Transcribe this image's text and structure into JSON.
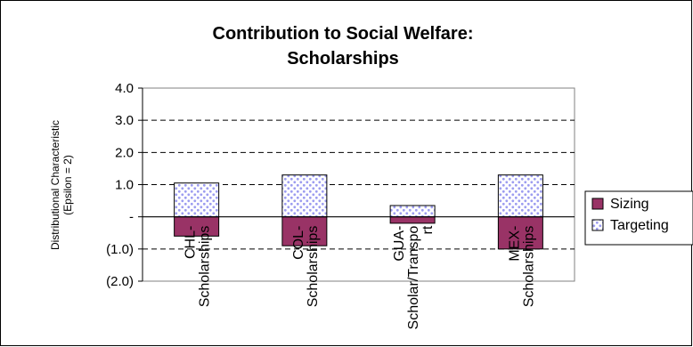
{
  "chart_data": {
    "type": "bar",
    "stacked": true,
    "title": [
      "Contribution to Social Welfare:",
      "Scholarships"
    ],
    "ylabel": [
      "Distributional Characteristic",
      "(Epsilon = 2)"
    ],
    "xlabel": "",
    "categories": [
      [
        "CHL-",
        "Scholarships"
      ],
      [
        "COL-",
        "Scholarships"
      ],
      [
        "GUA-",
        "Scholar/Transpo",
        "rt"
      ],
      [
        "MEX-",
        "Scholarships"
      ]
    ],
    "series": [
      {
        "name": "Sizing",
        "color": "#993366",
        "pattern": "solid",
        "values": [
          -0.6,
          -0.9,
          -0.2,
          -1.0
        ]
      },
      {
        "name": "Targeting",
        "color": "#9999ff",
        "pattern": "dots",
        "values": [
          1.05,
          1.3,
          0.35,
          1.3
        ]
      }
    ],
    "ylim": [
      -2.0,
      4.0
    ],
    "yticks": [
      4.0,
      3.0,
      2.0,
      1.0,
      0.0,
      -1.0,
      -2.0
    ],
    "ytick_labels": [
      "4.0",
      "3.0",
      "2.0",
      "1.0",
      "-",
      "(1.0)",
      "(2.0)"
    ],
    "grid": "dashed-horizontal",
    "legend": "right"
  }
}
